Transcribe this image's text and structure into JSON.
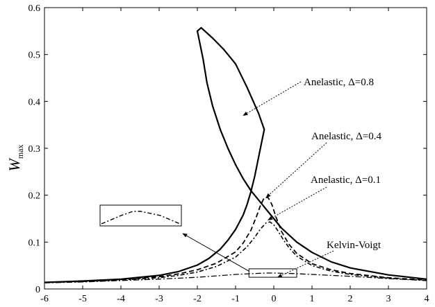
{
  "chart_data": {
    "type": "line",
    "xlim": [
      -6,
      4
    ],
    "ylim": [
      0,
      0.6
    ],
    "xticks": [
      "-6",
      "-5",
      "-4",
      "-3",
      "-2",
      "-1",
      "0",
      "1",
      "2",
      "3",
      "4"
    ],
    "yticks": [
      "0",
      "0.1",
      "0.2",
      "0.3",
      "0.4",
      "0.5",
      "0.6"
    ],
    "ylabel": "W",
    "ylabel_subscript": "max",
    "grid": false,
    "series": [
      {
        "name": "Anelastic, Δ=0.8",
        "style": "solid",
        "points": [
          [
            -6,
            0.014
          ],
          [
            -5,
            0.017
          ],
          [
            -4,
            0.021
          ],
          [
            -3,
            0.029
          ],
          [
            -2.5,
            0.037
          ],
          [
            -2,
            0.051
          ],
          [
            -1.7,
            0.065
          ],
          [
            -1.4,
            0.085
          ],
          [
            -1.2,
            0.104
          ],
          [
            -1.0,
            0.127
          ],
          [
            -0.8,
            0.158
          ],
          [
            -0.7,
            0.18
          ],
          [
            -0.6,
            0.207
          ],
          [
            -0.5,
            0.24
          ],
          [
            -0.4,
            0.28
          ],
          [
            -0.3,
            0.32
          ],
          [
            -0.25,
            0.34
          ],
          [
            -0.4,
            0.375
          ],
          [
            -0.7,
            0.43
          ],
          [
            -1.0,
            0.48
          ],
          [
            -1.3,
            0.51
          ],
          [
            -1.6,
            0.535
          ],
          [
            -1.9,
            0.557
          ],
          [
            -2.0,
            0.55
          ],
          [
            -1.85,
            0.49
          ],
          [
            -1.75,
            0.44
          ],
          [
            -1.6,
            0.39
          ],
          [
            -1.4,
            0.34
          ],
          [
            -1.2,
            0.3
          ],
          [
            -1.0,
            0.265
          ],
          [
            -0.8,
            0.235
          ],
          [
            -0.6,
            0.21
          ],
          [
            -0.4,
            0.19
          ],
          [
            -0.2,
            0.17
          ],
          [
            0,
            0.15
          ],
          [
            0.2,
            0.13
          ],
          [
            0.4,
            0.115
          ],
          [
            0.6,
            0.1
          ],
          [
            1.0,
            0.078
          ],
          [
            1.5,
            0.058
          ],
          [
            2,
            0.045
          ],
          [
            3,
            0.03
          ],
          [
            4,
            0.021
          ]
        ]
      },
      {
        "name": "Anelastic, Δ=0.4",
        "style": "dashed",
        "points": [
          [
            -6,
            0.014
          ],
          [
            -5,
            0.016
          ],
          [
            -4,
            0.02
          ],
          [
            -3,
            0.026
          ],
          [
            -2.5,
            0.032
          ],
          [
            -2,
            0.041
          ],
          [
            -1.5,
            0.055
          ],
          [
            -1,
            0.079
          ],
          [
            -0.8,
            0.098
          ],
          [
            -0.6,
            0.125
          ],
          [
            -0.45,
            0.155
          ],
          [
            -0.35,
            0.178
          ],
          [
            -0.25,
            0.195
          ],
          [
            -0.15,
            0.195
          ],
          [
            -0.05,
            0.18
          ],
          [
            0.05,
            0.155
          ],
          [
            0.2,
            0.123
          ],
          [
            0.4,
            0.095
          ],
          [
            0.6,
            0.076
          ],
          [
            1,
            0.054
          ],
          [
            1.5,
            0.041
          ],
          [
            2,
            0.033
          ],
          [
            3,
            0.024
          ],
          [
            4,
            0.019
          ]
        ]
      },
      {
        "name": "Anelastic, Δ=0.1",
        "style": "dash-dot",
        "points": [
          [
            -6,
            0.014
          ],
          [
            -5,
            0.016
          ],
          [
            -4,
            0.019
          ],
          [
            -3,
            0.024
          ],
          [
            -2.5,
            0.029
          ],
          [
            -2,
            0.036
          ],
          [
            -1.5,
            0.048
          ],
          [
            -1,
            0.068
          ],
          [
            -0.7,
            0.09
          ],
          [
            -0.5,
            0.11
          ],
          [
            -0.35,
            0.128
          ],
          [
            -0.2,
            0.141
          ],
          [
            -0.1,
            0.143
          ],
          [
            0,
            0.137
          ],
          [
            0.1,
            0.125
          ],
          [
            0.25,
            0.105
          ],
          [
            0.4,
            0.088
          ],
          [
            0.6,
            0.07
          ],
          [
            1,
            0.05
          ],
          [
            1.5,
            0.038
          ],
          [
            2,
            0.031
          ],
          [
            3,
            0.023
          ],
          [
            4,
            0.018
          ]
        ]
      },
      {
        "name": "Kelvin-Voigt",
        "style": "dash-dot-thin",
        "points": [
          [
            -6,
            0.013
          ],
          [
            -5,
            0.015
          ],
          [
            -4,
            0.018
          ],
          [
            -3,
            0.021
          ],
          [
            -2,
            0.025
          ],
          [
            -1.5,
            0.028
          ],
          [
            -1,
            0.031
          ],
          [
            -0.5,
            0.033
          ],
          [
            -0.2,
            0.034
          ],
          [
            0,
            0.034
          ],
          [
            0.5,
            0.033
          ],
          [
            1,
            0.031
          ],
          [
            2,
            0.027
          ],
          [
            3,
            0.022
          ],
          [
            4,
            0.018
          ]
        ]
      }
    ],
    "annotations": [
      {
        "text": "Anelastic, Δ=0.8",
        "arrow_to": [
          -0.8,
          0.37
        ]
      },
      {
        "text": "Anelastic, Δ=0.4",
        "arrow_to": [
          -0.2,
          0.195
        ]
      },
      {
        "text": "Anelastic, Δ=0.1",
        "arrow_to": [
          -0.15,
          0.147
        ]
      },
      {
        "text": "Kelvin-Voigt",
        "arrow_to": [
          0.1,
          0.025
        ]
      }
    ]
  }
}
